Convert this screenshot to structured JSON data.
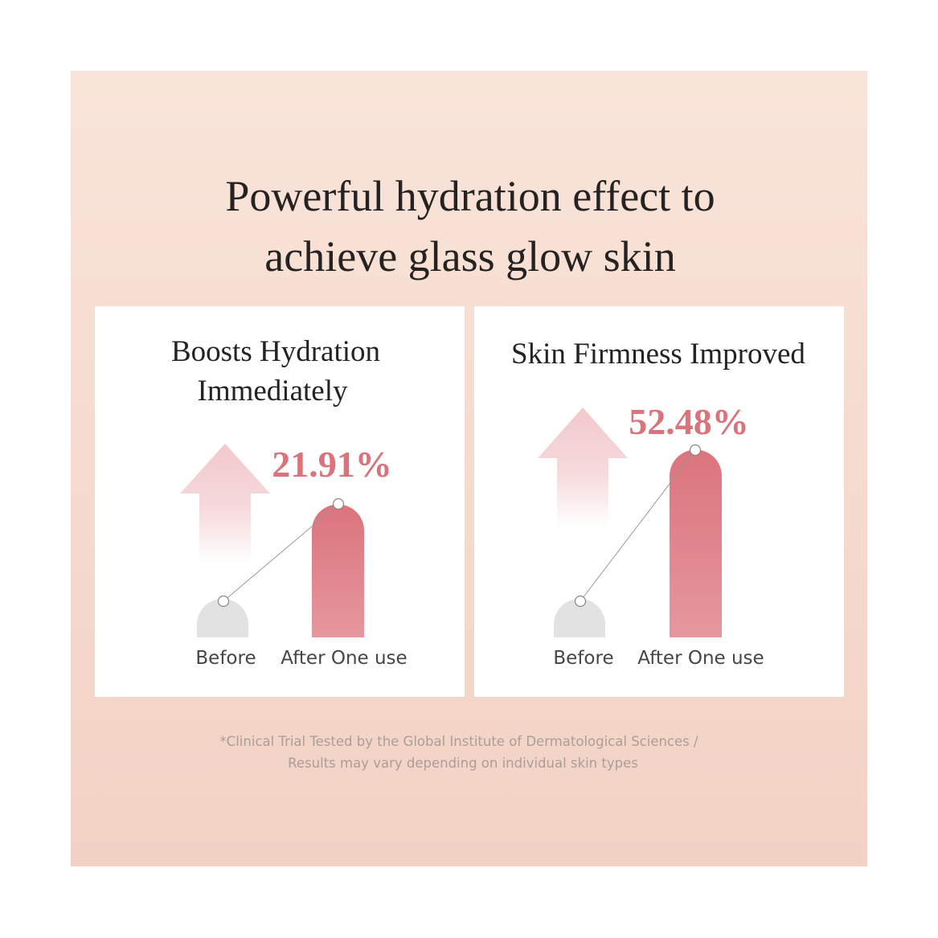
{
  "header": {
    "title": [
      "Powerful hydration effect to",
      "achieve glass glow skin"
    ]
  },
  "cards": [
    {
      "title": [
        "Boosts Hydration",
        "Immediately"
      ],
      "value": "21.91%",
      "labels": [
        "Before",
        "After One use"
      ]
    },
    {
      "title": [
        "Skin Firmness Improved"
      ],
      "value": "52.48%",
      "labels": [
        "Before",
        "After One use"
      ]
    }
  ],
  "footnote": [
    "*Clinical Trial Tested by the Global Institute of Dermatological Sciences /",
    "Results may vary depending on individual skin types"
  ]
}
